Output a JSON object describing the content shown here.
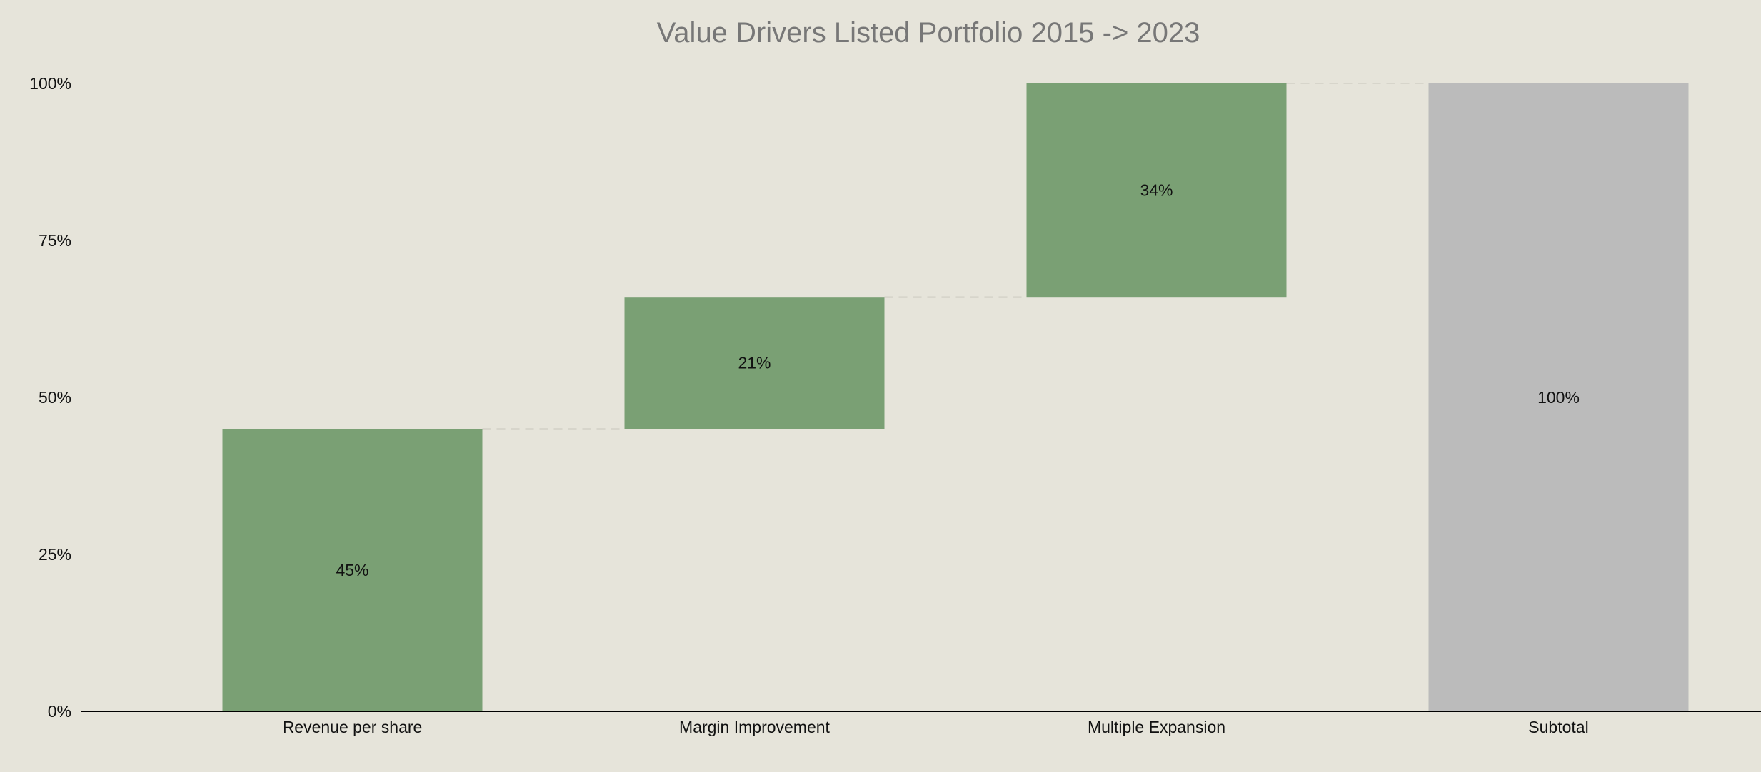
{
  "chart_data": {
    "type": "bar",
    "subtype": "waterfall",
    "title": "Value Drivers Listed Portfolio 2015 -> 2023",
    "xlabel": "",
    "ylabel": "",
    "ylim": [
      0,
      100
    ],
    "yticks": [
      0,
      25,
      50,
      75,
      100
    ],
    "ytick_labels": [
      "0%",
      "25%",
      "50%",
      "75%",
      "100%"
    ],
    "categories": [
      "Revenue per share",
      "Margin Improvement",
      "Multiple Expansion",
      "Subtotal"
    ],
    "values": [
      45,
      21,
      34,
      100
    ],
    "value_labels": [
      "45%",
      "21%",
      "34%",
      "100%"
    ],
    "bar_kinds": [
      "increase",
      "increase",
      "increase",
      "total"
    ],
    "grid": false,
    "connectors": true,
    "colors": {
      "background": "#e6e4da",
      "increase": "#7aa074",
      "total": "#bbbbbb",
      "title": "#777777",
      "text": "#111111",
      "axis": "#000000",
      "connector": "#d7d5cb"
    }
  }
}
